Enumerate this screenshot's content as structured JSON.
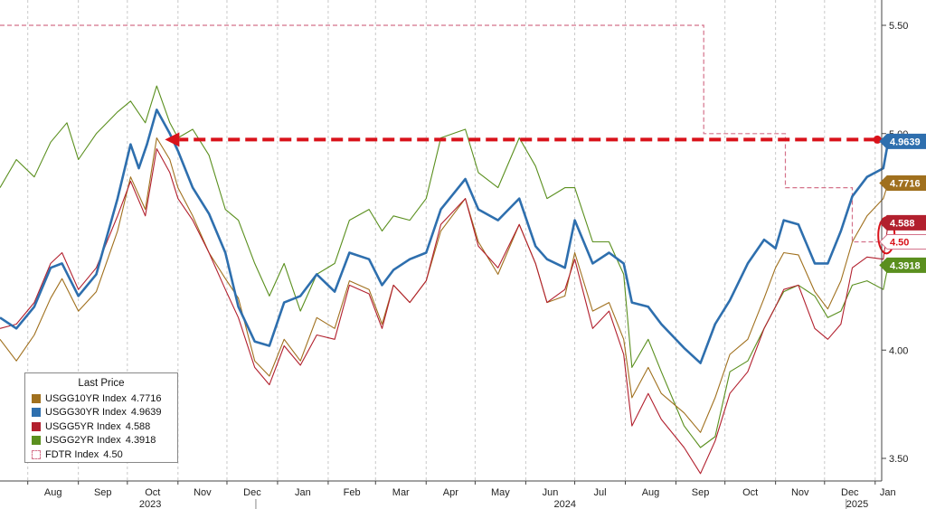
{
  "chart_data": {
    "type": "line",
    "x_range": [
      "2023-07-15",
      "2025-01-05"
    ],
    "ylim": [
      3.4,
      5.6
    ],
    "y_axis_side": "right",
    "y_ticks": [
      "3.50",
      "4.00",
      "4.50",
      "5.00",
      "5.50"
    ],
    "grid": "vertical dashed",
    "x_ticks": [
      {
        "label": "Aug",
        "date": "2023-08-01"
      },
      {
        "label": "Sep",
        "date": "2023-09-01"
      },
      {
        "label": "Oct",
        "date": "2023-10-01"
      },
      {
        "label": "Nov",
        "date": "2023-11-01"
      },
      {
        "label": "Dec",
        "date": "2023-12-01"
      },
      {
        "label": "Jan",
        "date": "2024-01-01"
      },
      {
        "label": "Feb",
        "date": "2024-02-01"
      },
      {
        "label": "Mar",
        "date": "2024-03-01"
      },
      {
        "label": "Apr",
        "date": "2024-04-01"
      },
      {
        "label": "May",
        "date": "2024-05-01"
      },
      {
        "label": "Jun",
        "date": "2024-06-01"
      },
      {
        "label": "Jul",
        "date": "2024-07-01"
      },
      {
        "label": "Aug",
        "date": "2024-08-01"
      },
      {
        "label": "Sep",
        "date": "2024-09-01"
      },
      {
        "label": "Oct",
        "date": "2024-10-01"
      },
      {
        "label": "Nov",
        "date": "2024-11-01"
      },
      {
        "label": "Dec",
        "date": "2024-12-01"
      },
      {
        "label": "Jan",
        "date": "2025-01-01"
      }
    ],
    "year_labels": [
      {
        "label": "2023",
        "date": "2023-10-15"
      },
      {
        "label": "2024",
        "date": "2024-06-25"
      },
      {
        "label": "2025",
        "date": "2025-01-01"
      }
    ],
    "legend": {
      "title": "Last Price",
      "placement": "bottom-left"
    },
    "series": [
      {
        "name": "USGG10YR Index",
        "last": "4.7716",
        "color": "#a0701e",
        "width": 1.1,
        "points": [
          [
            "2023-07-15",
            4.05
          ],
          [
            "2023-07-25",
            3.95
          ],
          [
            "2023-08-05",
            4.07
          ],
          [
            "2023-08-15",
            4.24
          ],
          [
            "2023-08-22",
            4.33
          ],
          [
            "2023-09-01",
            4.18
          ],
          [
            "2023-09-12",
            4.27
          ],
          [
            "2023-09-25",
            4.55
          ],
          [
            "2023-10-03",
            4.8
          ],
          [
            "2023-10-12",
            4.65
          ],
          [
            "2023-10-19",
            4.98
          ],
          [
            "2023-10-27",
            4.88
          ],
          [
            "2023-11-01",
            4.75
          ],
          [
            "2023-11-10",
            4.62
          ],
          [
            "2023-11-20",
            4.45
          ],
          [
            "2023-11-30",
            4.33
          ],
          [
            "2023-12-08",
            4.24
          ],
          [
            "2023-12-18",
            3.95
          ],
          [
            "2023-12-27",
            3.88
          ],
          [
            "2024-01-05",
            4.05
          ],
          [
            "2024-01-15",
            3.95
          ],
          [
            "2024-01-25",
            4.15
          ],
          [
            "2024-02-05",
            4.1
          ],
          [
            "2024-02-14",
            4.32
          ],
          [
            "2024-02-26",
            4.28
          ],
          [
            "2024-03-05",
            4.12
          ],
          [
            "2024-03-12",
            4.3
          ],
          [
            "2024-03-22",
            4.22
          ],
          [
            "2024-04-01",
            4.32
          ],
          [
            "2024-04-10",
            4.55
          ],
          [
            "2024-04-25",
            4.7
          ],
          [
            "2024-05-03",
            4.5
          ],
          [
            "2024-05-15",
            4.35
          ],
          [
            "2024-05-28",
            4.58
          ],
          [
            "2024-06-07",
            4.4
          ],
          [
            "2024-06-14",
            4.22
          ],
          [
            "2024-06-25",
            4.25
          ],
          [
            "2024-07-01",
            4.45
          ],
          [
            "2024-07-12",
            4.18
          ],
          [
            "2024-07-22",
            4.22
          ],
          [
            "2024-07-31",
            4.05
          ],
          [
            "2024-08-05",
            3.78
          ],
          [
            "2024-08-15",
            3.92
          ],
          [
            "2024-08-23",
            3.8
          ],
          [
            "2024-09-06",
            3.71
          ],
          [
            "2024-09-16",
            3.62
          ],
          [
            "2024-09-25",
            3.78
          ],
          [
            "2024-10-04",
            3.98
          ],
          [
            "2024-10-15",
            4.05
          ],
          [
            "2024-10-25",
            4.24
          ],
          [
            "2024-11-01",
            4.38
          ],
          [
            "2024-11-06",
            4.45
          ],
          [
            "2024-11-15",
            4.44
          ],
          [
            "2024-11-25",
            4.27
          ],
          [
            "2024-12-03",
            4.19
          ],
          [
            "2024-12-11",
            4.32
          ],
          [
            "2024-12-18",
            4.5
          ],
          [
            "2024-12-27",
            4.62
          ],
          [
            "2025-01-06",
            4.7
          ],
          [
            "2025-01-09",
            4.7716
          ]
        ]
      },
      {
        "name": "USGG30YR Index",
        "last": "4.9639",
        "color": "#2e6fae",
        "width": 2.6,
        "points": [
          [
            "2023-07-15",
            4.15
          ],
          [
            "2023-07-25",
            4.1
          ],
          [
            "2023-08-05",
            4.2
          ],
          [
            "2023-08-15",
            4.38
          ],
          [
            "2023-08-22",
            4.4
          ],
          [
            "2023-09-01",
            4.25
          ],
          [
            "2023-09-12",
            4.35
          ],
          [
            "2023-09-25",
            4.7
          ],
          [
            "2023-10-03",
            4.95
          ],
          [
            "2023-10-08",
            4.84
          ],
          [
            "2023-10-13",
            4.95
          ],
          [
            "2023-10-19",
            5.11
          ],
          [
            "2023-10-27",
            5.0
          ],
          [
            "2023-11-01",
            4.92
          ],
          [
            "2023-11-10",
            4.75
          ],
          [
            "2023-11-20",
            4.63
          ],
          [
            "2023-11-30",
            4.45
          ],
          [
            "2023-12-08",
            4.2
          ],
          [
            "2023-12-18",
            4.04
          ],
          [
            "2023-12-27",
            4.02
          ],
          [
            "2024-01-05",
            4.22
          ],
          [
            "2024-01-15",
            4.25
          ],
          [
            "2024-01-25",
            4.35
          ],
          [
            "2024-02-05",
            4.27
          ],
          [
            "2024-02-14",
            4.45
          ],
          [
            "2024-02-26",
            4.42
          ],
          [
            "2024-03-05",
            4.3
          ],
          [
            "2024-03-12",
            4.37
          ],
          [
            "2024-03-22",
            4.42
          ],
          [
            "2024-04-01",
            4.45
          ],
          [
            "2024-04-10",
            4.65
          ],
          [
            "2024-04-25",
            4.79
          ],
          [
            "2024-05-03",
            4.65
          ],
          [
            "2024-05-15",
            4.6
          ],
          [
            "2024-05-28",
            4.7
          ],
          [
            "2024-06-07",
            4.48
          ],
          [
            "2024-06-14",
            4.42
          ],
          [
            "2024-06-25",
            4.38
          ],
          [
            "2024-07-01",
            4.6
          ],
          [
            "2024-07-12",
            4.4
          ],
          [
            "2024-07-22",
            4.45
          ],
          [
            "2024-07-31",
            4.4
          ],
          [
            "2024-08-05",
            4.22
          ],
          [
            "2024-08-15",
            4.2
          ],
          [
            "2024-08-23",
            4.12
          ],
          [
            "2024-09-06",
            4.01
          ],
          [
            "2024-09-16",
            3.94
          ],
          [
            "2024-09-25",
            4.12
          ],
          [
            "2024-10-04",
            4.23
          ],
          [
            "2024-10-15",
            4.4
          ],
          [
            "2024-10-25",
            4.51
          ],
          [
            "2024-11-01",
            4.47
          ],
          [
            "2024-11-06",
            4.6
          ],
          [
            "2024-11-15",
            4.58
          ],
          [
            "2024-11-25",
            4.4
          ],
          [
            "2024-12-03",
            4.4
          ],
          [
            "2024-12-11",
            4.55
          ],
          [
            "2024-12-18",
            4.71
          ],
          [
            "2024-12-27",
            4.8
          ],
          [
            "2025-01-06",
            4.84
          ],
          [
            "2025-01-09",
            4.9639
          ]
        ]
      },
      {
        "name": "USGG5YR Index",
        "last": "4.588",
        "color": "#b2202e",
        "width": 1.1,
        "points": [
          [
            "2023-07-15",
            4.1
          ],
          [
            "2023-07-25",
            4.12
          ],
          [
            "2023-08-05",
            4.22
          ],
          [
            "2023-08-15",
            4.4
          ],
          [
            "2023-08-22",
            4.45
          ],
          [
            "2023-09-01",
            4.28
          ],
          [
            "2023-09-12",
            4.38
          ],
          [
            "2023-09-25",
            4.62
          ],
          [
            "2023-10-03",
            4.78
          ],
          [
            "2023-10-12",
            4.62
          ],
          [
            "2023-10-19",
            4.93
          ],
          [
            "2023-10-27",
            4.82
          ],
          [
            "2023-11-01",
            4.7
          ],
          [
            "2023-11-10",
            4.6
          ],
          [
            "2023-11-20",
            4.45
          ],
          [
            "2023-11-30",
            4.28
          ],
          [
            "2023-12-08",
            4.15
          ],
          [
            "2023-12-18",
            3.92
          ],
          [
            "2023-12-27",
            3.84
          ],
          [
            "2024-01-05",
            4.02
          ],
          [
            "2024-01-15",
            3.93
          ],
          [
            "2024-01-25",
            4.07
          ],
          [
            "2024-02-05",
            4.05
          ],
          [
            "2024-02-14",
            4.3
          ],
          [
            "2024-02-26",
            4.26
          ],
          [
            "2024-03-05",
            4.1
          ],
          [
            "2024-03-12",
            4.3
          ],
          [
            "2024-03-22",
            4.22
          ],
          [
            "2024-04-01",
            4.32
          ],
          [
            "2024-04-10",
            4.58
          ],
          [
            "2024-04-25",
            4.7
          ],
          [
            "2024-05-03",
            4.48
          ],
          [
            "2024-05-15",
            4.38
          ],
          [
            "2024-05-28",
            4.58
          ],
          [
            "2024-06-07",
            4.4
          ],
          [
            "2024-06-14",
            4.22
          ],
          [
            "2024-06-25",
            4.28
          ],
          [
            "2024-07-01",
            4.42
          ],
          [
            "2024-07-12",
            4.1
          ],
          [
            "2024-07-22",
            4.18
          ],
          [
            "2024-07-31",
            3.98
          ],
          [
            "2024-08-05",
            3.65
          ],
          [
            "2024-08-15",
            3.8
          ],
          [
            "2024-08-23",
            3.68
          ],
          [
            "2024-09-06",
            3.55
          ],
          [
            "2024-09-16",
            3.43
          ],
          [
            "2024-09-25",
            3.58
          ],
          [
            "2024-10-04",
            3.8
          ],
          [
            "2024-10-15",
            3.9
          ],
          [
            "2024-10-25",
            4.1
          ],
          [
            "2024-11-01",
            4.2
          ],
          [
            "2024-11-06",
            4.28
          ],
          [
            "2024-11-15",
            4.3
          ],
          [
            "2024-11-25",
            4.1
          ],
          [
            "2024-12-03",
            4.05
          ],
          [
            "2024-12-11",
            4.12
          ],
          [
            "2024-12-18",
            4.38
          ],
          [
            "2024-12-27",
            4.43
          ],
          [
            "2025-01-06",
            4.42
          ],
          [
            "2025-01-09",
            4.588
          ]
        ]
      },
      {
        "name": "USGG2YR Index",
        "last": "4.3918",
        "color": "#5a8f1e",
        "width": 1.1,
        "points": [
          [
            "2023-07-15",
            4.75
          ],
          [
            "2023-07-25",
            4.88
          ],
          [
            "2023-08-05",
            4.8
          ],
          [
            "2023-08-15",
            4.96
          ],
          [
            "2023-08-25",
            5.05
          ],
          [
            "2023-09-01",
            4.88
          ],
          [
            "2023-09-12",
            5.0
          ],
          [
            "2023-09-25",
            5.1
          ],
          [
            "2023-10-03",
            5.15
          ],
          [
            "2023-10-12",
            5.05
          ],
          [
            "2023-10-19",
            5.22
          ],
          [
            "2023-10-27",
            5.05
          ],
          [
            "2023-11-01",
            4.98
          ],
          [
            "2023-11-10",
            5.02
          ],
          [
            "2023-11-20",
            4.9
          ],
          [
            "2023-11-30",
            4.65
          ],
          [
            "2023-12-08",
            4.6
          ],
          [
            "2023-12-18",
            4.4
          ],
          [
            "2023-12-27",
            4.25
          ],
          [
            "2024-01-05",
            4.4
          ],
          [
            "2024-01-15",
            4.18
          ],
          [
            "2024-01-25",
            4.35
          ],
          [
            "2024-02-05",
            4.4
          ],
          [
            "2024-02-14",
            4.6
          ],
          [
            "2024-02-26",
            4.65
          ],
          [
            "2024-03-05",
            4.55
          ],
          [
            "2024-03-12",
            4.62
          ],
          [
            "2024-03-22",
            4.6
          ],
          [
            "2024-04-01",
            4.7
          ],
          [
            "2024-04-10",
            4.98
          ],
          [
            "2024-04-25",
            5.02
          ],
          [
            "2024-05-03",
            4.82
          ],
          [
            "2024-05-15",
            4.75
          ],
          [
            "2024-05-28",
            4.98
          ],
          [
            "2024-06-07",
            4.85
          ],
          [
            "2024-06-14",
            4.7
          ],
          [
            "2024-06-25",
            4.75
          ],
          [
            "2024-07-01",
            4.75
          ],
          [
            "2024-07-12",
            4.5
          ],
          [
            "2024-07-22",
            4.5
          ],
          [
            "2024-07-31",
            4.35
          ],
          [
            "2024-08-05",
            3.92
          ],
          [
            "2024-08-15",
            4.05
          ],
          [
            "2024-08-23",
            3.9
          ],
          [
            "2024-09-06",
            3.65
          ],
          [
            "2024-09-16",
            3.55
          ],
          [
            "2024-09-25",
            3.6
          ],
          [
            "2024-10-04",
            3.9
          ],
          [
            "2024-10-15",
            3.95
          ],
          [
            "2024-10-25",
            4.1
          ],
          [
            "2024-11-01",
            4.2
          ],
          [
            "2024-11-06",
            4.27
          ],
          [
            "2024-11-15",
            4.3
          ],
          [
            "2024-11-25",
            4.25
          ],
          [
            "2024-12-03",
            4.15
          ],
          [
            "2024-12-11",
            4.18
          ],
          [
            "2024-12-18",
            4.3
          ],
          [
            "2024-12-27",
            4.32
          ],
          [
            "2025-01-06",
            4.28
          ],
          [
            "2025-01-09",
            4.3918
          ]
        ]
      }
    ],
    "step_series": {
      "name": "FDTR Index",
      "last": "4.50",
      "color": "#d4728a",
      "points": [
        [
          "2023-07-15",
          5.5
        ],
        [
          "2024-09-18",
          5.5
        ],
        [
          "2024-09-18",
          5.0
        ],
        [
          "2024-11-07",
          5.0
        ],
        [
          "2024-11-07",
          4.75
        ],
        [
          "2024-12-18",
          4.75
        ],
        [
          "2024-12-18",
          4.5
        ],
        [
          "2025-01-09",
          4.5
        ]
      ]
    },
    "annotations": {
      "reference_level": 4.9639,
      "arrow_from_date": "2025-01-09",
      "arrow_to_date": "2023-10-24",
      "arrow_color": "#d9121a",
      "circle_date": "2025-01-09",
      "circle_center_value": 4.53
    },
    "badge_order": [
      "USGG30YR Index",
      "USGG10YR Index",
      "USGG5YR Index",
      "FDTR Index",
      "USGG2YR Index"
    ]
  }
}
